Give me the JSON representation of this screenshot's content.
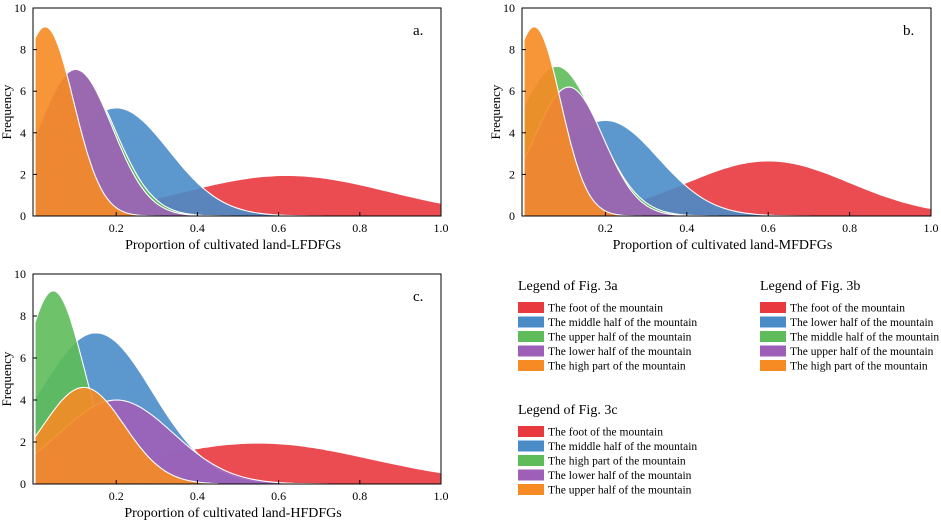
{
  "chart_data": [
    {
      "type": "area",
      "panel": "a.",
      "xlabel": "Proportion of cultivated land-LFDFGs",
      "ylabel": "Frequency",
      "xlim": [
        0,
        1.0
      ],
      "ylim": [
        0,
        10
      ],
      "xticks": [
        0.2,
        0.4,
        0.6,
        0.8,
        1.0
      ],
      "xtick_labels": [
        "0.2",
        "0.4",
        "0.6",
        "0.8",
        "1.0"
      ],
      "yticks": [
        0,
        2,
        4,
        6,
        8,
        10
      ],
      "ytick_labels": [
        "0",
        "2",
        "4",
        "6",
        "8",
        "10"
      ],
      "series": [
        {
          "name": "The foot of the mountain",
          "color": "#e8393e",
          "peak_x": 0.62,
          "peak_y": 1.95,
          "sd": 0.25,
          "x_start": 0.1,
          "x_end": 1.0
        },
        {
          "name": "The middle half of the mountain",
          "color": "#4a8cc8",
          "peak_x": 0.2,
          "peak_y": 5.2,
          "sd": 0.13,
          "x_start": 0.0,
          "x_end": 0.92
        },
        {
          "name": "The upper half of the mountain",
          "color": "#5ebd5a",
          "peak_x": 0.1,
          "peak_y": 7.0,
          "sd": 0.095,
          "x_start": 0.0,
          "x_end": 0.58
        },
        {
          "name": "The lower half of the mountain",
          "color": "#9e5fb8",
          "peak_x": 0.1,
          "peak_y": 7.05,
          "sd": 0.09,
          "x_start": 0.0,
          "x_end": 0.55
        },
        {
          "name": "The high part of the mountain",
          "color": "#f68b23",
          "peak_x": 0.025,
          "peak_y": 9.1,
          "sd": 0.07,
          "x_start": 0.0,
          "x_end": 0.35
        }
      ]
    },
    {
      "type": "area",
      "panel": "b.",
      "xlabel": "Proportion of cultivated land-MFDFGs",
      "ylabel": "Frequency",
      "xlim": [
        0,
        1.0
      ],
      "ylim": [
        0,
        10
      ],
      "xticks": [
        0.2,
        0.4,
        0.6,
        0.8,
        1.0
      ],
      "xtick_labels": [
        "0.2",
        "0.4",
        "0.6",
        "0.8",
        "1.0"
      ],
      "yticks": [
        0,
        2,
        4,
        6,
        8,
        10
      ],
      "ytick_labels": [
        "0",
        "2",
        "4",
        "6",
        "8",
        "10"
      ],
      "series": [
        {
          "name": "The foot of the mountain",
          "color": "#e8393e",
          "peak_x": 0.6,
          "peak_y": 2.65,
          "sd": 0.2,
          "x_start": 0.1,
          "x_end": 1.0
        },
        {
          "name": "The lower half of the mountain",
          "color": "#4a8cc8",
          "peak_x": 0.2,
          "peak_y": 4.6,
          "sd": 0.13,
          "x_start": 0.0,
          "x_end": 0.82
        },
        {
          "name": "The middle half of the mountain",
          "color": "#5ebd5a",
          "peak_x": 0.08,
          "peak_y": 7.2,
          "sd": 0.1,
          "x_start": 0.0,
          "x_end": 0.52
        },
        {
          "name": "The upper half of the mountain",
          "color": "#9e5fb8",
          "peak_x": 0.11,
          "peak_y": 6.2,
          "sd": 0.085,
          "x_start": 0.0,
          "x_end": 0.47
        },
        {
          "name": "The high part of the mountain",
          "color": "#f68b23",
          "peak_x": 0.025,
          "peak_y": 9.1,
          "sd": 0.065,
          "x_start": 0.0,
          "x_end": 0.32
        }
      ]
    },
    {
      "type": "area",
      "panel": "c.",
      "xlabel": "Proportion of cultivated land-HFDFGs",
      "ylabel": "Frequency",
      "xlim": [
        0,
        1.0
      ],
      "ylim": [
        0,
        10
      ],
      "xticks": [
        0.2,
        0.4,
        0.6,
        0.8,
        1.0
      ],
      "xtick_labels": [
        "0.2",
        "0.4",
        "0.6",
        "0.8",
        "1.0"
      ],
      "yticks": [
        0,
        2,
        4,
        6,
        8,
        10
      ],
      "ytick_labels": [
        "0",
        "2",
        "4",
        "6",
        "8",
        "10"
      ],
      "series": [
        {
          "name": "The foot of the mountain",
          "color": "#e8393e",
          "peak_x": 0.55,
          "peak_y": 1.95,
          "sd": 0.28,
          "x_start": 0.1,
          "x_end": 1.0
        },
        {
          "name": "The middle half of the mountain",
          "color": "#4a8cc8",
          "peak_x": 0.15,
          "peak_y": 7.2,
          "sd": 0.14,
          "x_start": 0.0,
          "x_end": 0.75
        },
        {
          "name": "The high part of the mountain",
          "color": "#5ebd5a",
          "peak_x": 0.045,
          "peak_y": 9.2,
          "sd": 0.075,
          "x_start": 0.0,
          "x_end": 0.35
        },
        {
          "name": "The lower half of the mountain",
          "color": "#9e5fb8",
          "peak_x": 0.2,
          "peak_y": 4.0,
          "sd": 0.14,
          "x_start": 0.0,
          "x_end": 0.72
        },
        {
          "name": "The upper half of the mountain",
          "color": "#f68b23",
          "peak_x": 0.12,
          "peak_y": 4.6,
          "sd": 0.1,
          "x_start": 0.0,
          "x_end": 0.45
        }
      ]
    }
  ],
  "legends": [
    {
      "title": "Legend of Fig. 3a",
      "items": [
        {
          "label": "The foot of the mountain",
          "color": "#e8393e"
        },
        {
          "label": "The middle half of the mountain",
          "color": "#4a8cc8"
        },
        {
          "label": "The upper half of the mountain",
          "color": "#5ebd5a"
        },
        {
          "label": "The lower half of the mountain",
          "color": "#9e5fb8"
        },
        {
          "label": "The high part of the mountain",
          "color": "#f68b23"
        }
      ]
    },
    {
      "title": "Legend of Fig. 3b",
      "items": [
        {
          "label": "The foot of the mountain",
          "color": "#e8393e"
        },
        {
          "label": "The lower half of the mountain",
          "color": "#4a8cc8"
        },
        {
          "label": "The middle half of the mountain",
          "color": "#5ebd5a"
        },
        {
          "label": "The upper half of the mountain",
          "color": "#9e5fb8"
        },
        {
          "label": "The high part of the mountain",
          "color": "#f68b23"
        }
      ]
    },
    {
      "title": "Legend of Fig. 3c",
      "items": [
        {
          "label": "The foot of the mountain",
          "color": "#e8393e"
        },
        {
          "label": "The middle half of the mountain",
          "color": "#4a8cc8"
        },
        {
          "label": "The high part of the mountain",
          "color": "#5ebd5a"
        },
        {
          "label": "The lower half of the mountain",
          "color": "#9e5fb8"
        },
        {
          "label": "The upper half of the mountain",
          "color": "#f68b23"
        }
      ]
    }
  ]
}
